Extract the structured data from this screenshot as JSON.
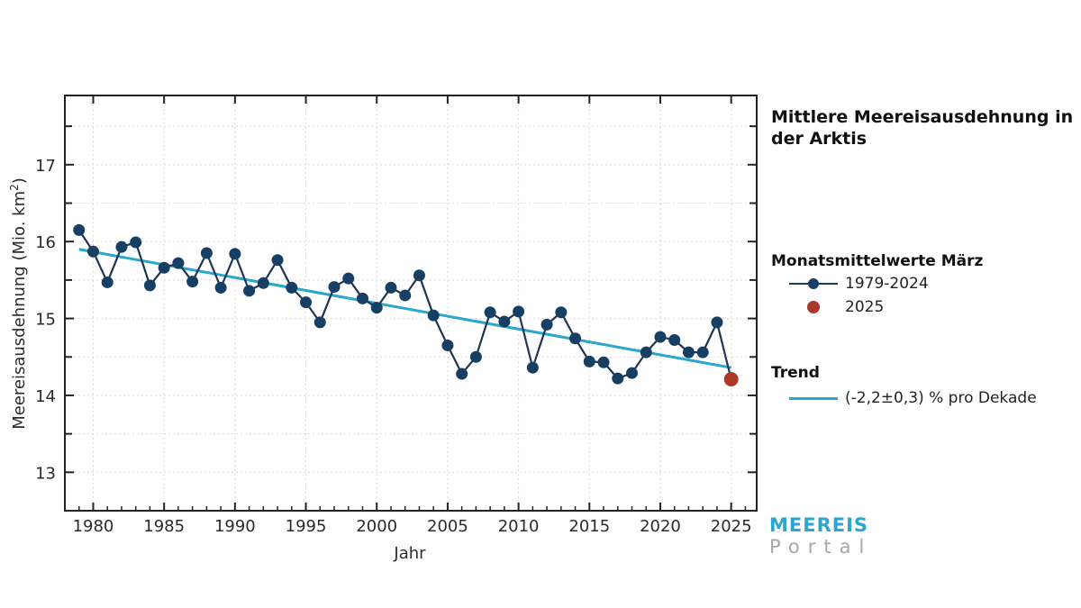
{
  "chart_data": {
    "type": "line",
    "title": "Mittlere Meereisausdehnung in der Arktis",
    "xlabel": "Jahr",
    "ylabel": "Meereisausdehnung (Mio. km²)",
    "ylabel_main": "Meereisausdehnung (Mio. km",
    "ylabel_sup": "2",
    "ylabel_end": ")",
    "xlim": [
      1978,
      2026.8
    ],
    "ylim": [
      12.5,
      17.9
    ],
    "xticks": [
      1980,
      1985,
      1990,
      1995,
      2000,
      2005,
      2010,
      2015,
      2020,
      2025
    ],
    "yticks": [
      13,
      14,
      15,
      16,
      17
    ],
    "grid": true,
    "legend_position": "right",
    "series": [
      {
        "name": "1979-2024",
        "color": "#173e63",
        "x": [
          1979,
          1980,
          1981,
          1982,
          1983,
          1984,
          1985,
          1986,
          1987,
          1988,
          1989,
          1990,
          1991,
          1992,
          1993,
          1994,
          1995,
          1996,
          1997,
          1998,
          1999,
          2000,
          2001,
          2002,
          2003,
          2004,
          2005,
          2006,
          2007,
          2008,
          2009,
          2010,
          2011,
          2012,
          2013,
          2014,
          2015,
          2016,
          2017,
          2018,
          2019,
          2020,
          2021,
          2022,
          2023,
          2024
        ],
        "values": [
          16.15,
          15.87,
          15.47,
          15.93,
          15.99,
          15.43,
          15.66,
          15.72,
          15.48,
          15.85,
          15.4,
          15.84,
          15.36,
          15.46,
          15.76,
          15.4,
          15.21,
          14.95,
          15.41,
          15.52,
          15.26,
          15.14,
          15.4,
          15.3,
          15.56,
          15.04,
          14.65,
          14.28,
          14.5,
          15.08,
          14.96,
          15.09,
          14.36,
          14.92,
          15.08,
          14.74,
          14.44,
          14.43,
          14.22,
          14.29,
          14.56,
          14.76,
          14.72,
          14.56,
          14.56,
          14.95
        ]
      },
      {
        "name": "2025",
        "color": "#a93a2b",
        "x": [
          2025
        ],
        "values": [
          14.21
        ]
      },
      {
        "name": "Trend",
        "color": "#2aa7cf",
        "x": [
          1979,
          2025
        ],
        "values": [
          15.9,
          14.36
        ]
      }
    ]
  },
  "legend": {
    "group1_title": "Monatsmittelwerte März",
    "item_series": "1979-2024",
    "item_2025": "2025",
    "group2_title": "Trend",
    "item_trend": "(-2,2±0,3) % pro Dekade"
  },
  "logo": {
    "line1": "MEEREIS",
    "line2": "Portal"
  }
}
